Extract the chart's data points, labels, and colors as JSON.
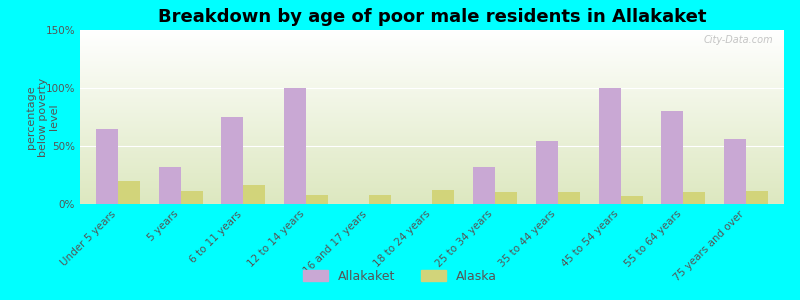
{
  "title": "Breakdown by age of poor male residents in Allakaket",
  "ylabel": "percentage\nbelow poverty\nlevel",
  "categories": [
    "Under 5 years",
    "5 years",
    "6 to 11 years",
    "12 to 14 years",
    "16 and 17 years",
    "18 to 24 years",
    "25 to 34 years",
    "35 to 44 years",
    "45 to 54 years",
    "55 to 64 years",
    "75 years and over"
  ],
  "allakaket_values": [
    65,
    32,
    75,
    100,
    0,
    0,
    32,
    54,
    100,
    80,
    56
  ],
  "alaska_values": [
    20,
    11,
    16,
    8,
    8,
    12,
    10,
    10,
    7,
    10,
    11
  ],
  "allakaket_color": "#c9a8d4",
  "alaska_color": "#d2d47a",
  "background_color": "#00ffff",
  "ylim": [
    0,
    150
  ],
  "yticks": [
    0,
    50,
    100,
    150
  ],
  "ytick_labels": [
    "0%",
    "50%",
    "100%",
    "150%"
  ],
  "bar_width": 0.35,
  "title_fontsize": 13,
  "axis_label_fontsize": 8,
  "tick_fontsize": 7.5,
  "legend_fontsize": 9,
  "watermark": "City-Data.com"
}
